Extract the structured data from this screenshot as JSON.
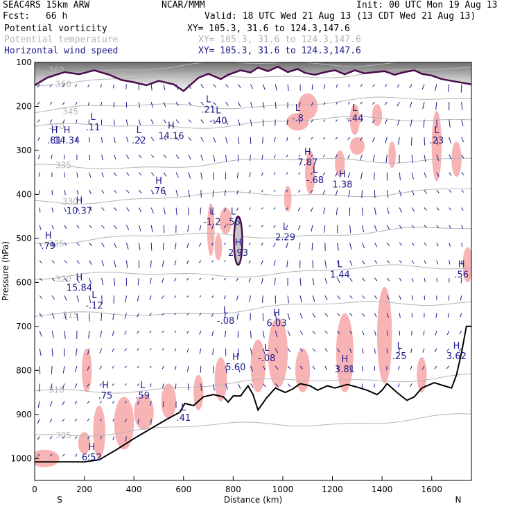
{
  "header": {
    "model": "SEAC4RS 15km ARW",
    "org": "NCAR/MMM",
    "init": "Init: 00 UTC Mon 19 Aug 13",
    "fcst_label": "Fcst:",
    "fcst_value": "66 h",
    "valid": "Valid: 18 UTC Wed 21 Aug 13 (13 CDT Wed 21 Aug 13)",
    "fields": [
      {
        "name": "Potential vorticity",
        "xy": "XY= 105.3, 31.6 to 124.3,147.6",
        "color": "#000000"
      },
      {
        "name": "Potential temperature",
        "xy": "XY= 105.3, 31.6 to 124.3,147.6",
        "color": "#b4b4b4"
      },
      {
        "name": "Horizontal wind speed",
        "xy": "XY= 105.3, 31.6 to 124.3,147.6",
        "color": "#1b1b8c"
      }
    ]
  },
  "chart_data": {
    "type": "cross-section",
    "xlabel": "Distance (km)",
    "ylabel": "Pressure (hPa)",
    "xlim": [
      0,
      1760
    ],
    "ylim": [
      1050,
      100
    ],
    "x_ticks": [
      "0",
      "200",
      "400",
      "600",
      "800",
      "1000",
      "1200",
      "1400",
      "1600"
    ],
    "y_ticks": [
      "100",
      "200",
      "300",
      "400",
      "500",
      "600",
      "700",
      "800",
      "900",
      "1000"
    ],
    "endpoint_labels": {
      "left": "S",
      "right": "N"
    },
    "colors": {
      "pv_fill": "#f8b4b4",
      "theta": "#b4b4b4",
      "wind": "#1b1b8c",
      "terrain": "#000000",
      "tropopause": "#4b0b4b"
    },
    "theta_contours": [
      {
        "label": "360",
        "p": 118
      },
      {
        "label": "350",
        "p": 143
      },
      {
        "label": "345",
        "p": 208
      },
      {
        "label": "340",
        "p": 250
      },
      {
        "label": "335",
        "p": 340
      },
      {
        "label": "330",
        "p": 415
      },
      {
        "label": "325",
        "p": 505
      },
      {
        "label": "320",
        "p": 590
      },
      {
        "label": "315",
        "p": 680
      },
      {
        "label": "310",
        "p": 850
      },
      {
        "label": "305",
        "p": 945
      }
    ],
    "terrain": [
      {
        "x": 0,
        "p": 1008
      },
      {
        "x": 100,
        "p": 1008
      },
      {
        "x": 200,
        "p": 1008
      },
      {
        "x": 260,
        "p": 1003
      },
      {
        "x": 330,
        "p": 980
      },
      {
        "x": 400,
        "p": 955
      },
      {
        "x": 460,
        "p": 935
      },
      {
        "x": 530,
        "p": 912
      },
      {
        "x": 585,
        "p": 895
      },
      {
        "x": 605,
        "p": 875
      },
      {
        "x": 640,
        "p": 880
      },
      {
        "x": 680,
        "p": 860
      },
      {
        "x": 720,
        "p": 855
      },
      {
        "x": 760,
        "p": 860
      },
      {
        "x": 780,
        "p": 872
      },
      {
        "x": 800,
        "p": 858
      },
      {
        "x": 830,
        "p": 858
      },
      {
        "x": 860,
        "p": 835
      },
      {
        "x": 880,
        "p": 855
      },
      {
        "x": 900,
        "p": 890
      },
      {
        "x": 935,
        "p": 862
      },
      {
        "x": 970,
        "p": 840
      },
      {
        "x": 1010,
        "p": 850
      },
      {
        "x": 1040,
        "p": 842
      },
      {
        "x": 1070,
        "p": 830
      },
      {
        "x": 1110,
        "p": 835
      },
      {
        "x": 1140,
        "p": 845
      },
      {
        "x": 1180,
        "p": 835
      },
      {
        "x": 1210,
        "p": 840
      },
      {
        "x": 1260,
        "p": 832
      },
      {
        "x": 1300,
        "p": 838
      },
      {
        "x": 1340,
        "p": 845
      },
      {
        "x": 1380,
        "p": 855
      },
      {
        "x": 1400,
        "p": 845
      },
      {
        "x": 1420,
        "p": 830
      },
      {
        "x": 1460,
        "p": 850
      },
      {
        "x": 1500,
        "p": 868
      },
      {
        "x": 1530,
        "p": 860
      },
      {
        "x": 1560,
        "p": 840
      },
      {
        "x": 1610,
        "p": 828
      },
      {
        "x": 1650,
        "p": 835
      },
      {
        "x": 1680,
        "p": 840
      },
      {
        "x": 1700,
        "p": 810
      },
      {
        "x": 1720,
        "p": 760
      },
      {
        "x": 1740,
        "p": 700
      },
      {
        "x": 1760,
        "p": 700
      }
    ],
    "tropopause": [
      {
        "x": 0,
        "p": 152
      },
      {
        "x": 50,
        "p": 135
      },
      {
        "x": 120,
        "p": 122
      },
      {
        "x": 180,
        "p": 127
      },
      {
        "x": 240,
        "p": 118
      },
      {
        "x": 300,
        "p": 128
      },
      {
        "x": 350,
        "p": 140
      },
      {
        "x": 400,
        "p": 145
      },
      {
        "x": 450,
        "p": 152
      },
      {
        "x": 500,
        "p": 142
      },
      {
        "x": 560,
        "p": 150
      },
      {
        "x": 600,
        "p": 165
      },
      {
        "x": 630,
        "p": 150
      },
      {
        "x": 660,
        "p": 135
      },
      {
        "x": 700,
        "p": 126
      },
      {
        "x": 750,
        "p": 138
      },
      {
        "x": 780,
        "p": 128
      },
      {
        "x": 830,
        "p": 118
      },
      {
        "x": 870,
        "p": 123
      },
      {
        "x": 900,
        "p": 112
      },
      {
        "x": 940,
        "p": 120
      },
      {
        "x": 980,
        "p": 110
      },
      {
        "x": 1020,
        "p": 122
      },
      {
        "x": 1060,
        "p": 115
      },
      {
        "x": 1090,
        "p": 124
      },
      {
        "x": 1130,
        "p": 128
      },
      {
        "x": 1170,
        "p": 122
      },
      {
        "x": 1210,
        "p": 118
      },
      {
        "x": 1250,
        "p": 127
      },
      {
        "x": 1290,
        "p": 118
      },
      {
        "x": 1330,
        "p": 125
      },
      {
        "x": 1370,
        "p": 122
      },
      {
        "x": 1410,
        "p": 120
      },
      {
        "x": 1450,
        "p": 128
      },
      {
        "x": 1490,
        "p": 122
      },
      {
        "x": 1530,
        "p": 118
      },
      {
        "x": 1560,
        "p": 126
      },
      {
        "x": 1600,
        "p": 130
      },
      {
        "x": 1640,
        "p": 138
      },
      {
        "x": 1680,
        "p": 142
      },
      {
        "x": 1720,
        "p": 146
      },
      {
        "x": 1760,
        "p": 150
      }
    ],
    "pv_blobs": [
      {
        "x": 40,
        "p": 1000,
        "rx": 60,
        "rp": 20
      },
      {
        "x": 200,
        "p": 965,
        "rx": 25,
        "rp": 25
      },
      {
        "x": 260,
        "p": 940,
        "rx": 25,
        "rp": 60
      },
      {
        "x": 360,
        "p": 920,
        "rx": 40,
        "rp": 60
      },
      {
        "x": 440,
        "p": 895,
        "rx": 40,
        "rp": 40
      },
      {
        "x": 540,
        "p": 870,
        "rx": 30,
        "rp": 40
      },
      {
        "x": 210,
        "p": 800,
        "rx": 20,
        "rp": 50
      },
      {
        "x": 660,
        "p": 850,
        "rx": 20,
        "rp": 40
      },
      {
        "x": 750,
        "p": 820,
        "rx": 25,
        "rp": 50
      },
      {
        "x": 900,
        "p": 790,
        "rx": 30,
        "rp": 60
      },
      {
        "x": 980,
        "p": 760,
        "rx": 40,
        "rp": 80
      },
      {
        "x": 1080,
        "p": 800,
        "rx": 30,
        "rp": 50
      },
      {
        "x": 1250,
        "p": 760,
        "rx": 35,
        "rp": 90
      },
      {
        "x": 1410,
        "p": 720,
        "rx": 30,
        "rp": 110
      },
      {
        "x": 1560,
        "p": 810,
        "rx": 20,
        "rp": 40
      },
      {
        "x": 1100,
        "p": 200,
        "rx": 40,
        "rp": 30
      },
      {
        "x": 1060,
        "p": 235,
        "rx": 45,
        "rp": 20
      },
      {
        "x": 1290,
        "p": 230,
        "rx": 20,
        "rp": 35
      },
      {
        "x": 1380,
        "p": 220,
        "rx": 20,
        "rp": 25
      },
      {
        "x": 1620,
        "p": 290,
        "rx": 20,
        "rp": 80
      },
      {
        "x": 1700,
        "p": 320,
        "rx": 20,
        "rp": 40
      },
      {
        "x": 1110,
        "p": 350,
        "rx": 20,
        "rp": 50
      },
      {
        "x": 1230,
        "p": 330,
        "rx": 20,
        "rp": 30
      },
      {
        "x": 1020,
        "p": 410,
        "rx": 15,
        "rp": 30
      },
      {
        "x": 1300,
        "p": 290,
        "rx": 30,
        "rp": 20
      },
      {
        "x": 770,
        "p": 460,
        "rx": 25,
        "rp": 30
      },
      {
        "x": 710,
        "p": 480,
        "rx": 15,
        "rp": 60
      },
      {
        "x": 740,
        "p": 520,
        "rx": 15,
        "rp": 30
      },
      {
        "x": 1745,
        "p": 560,
        "rx": 20,
        "rp": 40
      },
      {
        "x": 1440,
        "p": 310,
        "rx": 15,
        "rp": 30
      }
    ],
    "extrema": [
      {
        "type": "H",
        "value": ".81",
        "x": 80,
        "p": 270
      },
      {
        "type": "H",
        "value": "14.34",
        "x": 130,
        "p": 270
      },
      {
        "type": "L",
        "value": ".11",
        "x": 235,
        "p": 240
      },
      {
        "type": "L",
        "value": ".22",
        "x": 420,
        "p": 270
      },
      {
        "type": "H",
        "value": "14.16",
        "x": 550,
        "p": 260
      },
      {
        "type": "L",
        "value": ".21",
        "x": 700,
        "p": 200
      },
      {
        "type": "L",
        "value": "-.40",
        "x": 740,
        "p": 225
      },
      {
        "type": "L",
        "value": "-.8",
        "x": 1060,
        "p": 220
      },
      {
        "type": "L",
        "value": "-.44",
        "x": 1290,
        "p": 220
      },
      {
        "type": "L",
        "value": ".23",
        "x": 1620,
        "p": 270
      },
      {
        "type": "H",
        "value": "7.87",
        "x": 1100,
        "p": 320
      },
      {
        "type": "L",
        "value": "-.68",
        "x": 1130,
        "p": 360
      },
      {
        "type": "H",
        "value": "1.38",
        "x": 1240,
        "p": 370
      },
      {
        "type": "H",
        "value": ".76",
        "x": 500,
        "p": 385
      },
      {
        "type": "H",
        "value": "10.37",
        "x": 180,
        "p": 430
      },
      {
        "type": "L",
        "value": "-1.2",
        "x": 715,
        "p": 455
      },
      {
        "type": "L",
        "value": ".56",
        "x": 800,
        "p": 455
      },
      {
        "type": "L",
        "value": "2.29",
        "x": 1010,
        "p": 490
      },
      {
        "type": "H",
        "value": "2.93",
        "x": 820,
        "p": 525
      },
      {
        "type": "H",
        "value": ".79",
        "x": 55,
        "p": 510
      },
      {
        "type": "L",
        "value": "1.44",
        "x": 1230,
        "p": 575
      },
      {
        "type": "H",
        "value": ".56",
        "x": 1720,
        "p": 575
      },
      {
        "type": "H",
        "value": "15.84",
        "x": 180,
        "p": 605
      },
      {
        "type": "L",
        "value": "-.12",
        "x": 240,
        "p": 645
      },
      {
        "type": "L",
        "value": "-.08",
        "x": 770,
        "p": 680
      },
      {
        "type": "H",
        "value": "6.03",
        "x": 975,
        "p": 685
      },
      {
        "type": "L",
        "value": "-.08",
        "x": 935,
        "p": 765
      },
      {
        "type": "H",
        "value": "5.60",
        "x": 810,
        "p": 785
      },
      {
        "type": "H",
        "value": "3.62",
        "x": 1700,
        "p": 760
      },
      {
        "type": "L",
        "value": ".25",
        "x": 1470,
        "p": 760
      },
      {
        "type": "H",
        "value": "3.81",
        "x": 1250,
        "p": 790
      },
      {
        "type": "H",
        "value": ".75",
        "x": 285,
        "p": 850
      },
      {
        "type": "L",
        "value": ".59",
        "x": 435,
        "p": 850
      },
      {
        "type": "L",
        "value": ".41",
        "x": 600,
        "p": 900
      },
      {
        "type": "H",
        "value": "6.52",
        "x": 230,
        "p": 990
      }
    ]
  }
}
